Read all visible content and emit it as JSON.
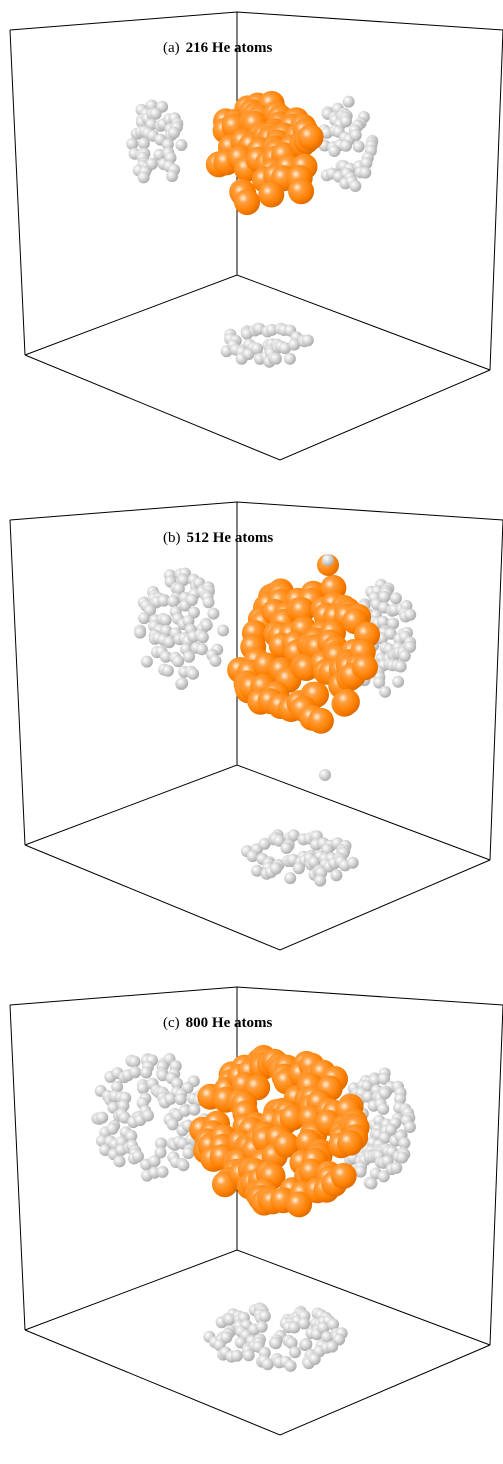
{
  "panels": [
    {
      "label": "(a)",
      "caption": "216 He atoms"
    },
    {
      "label": "(b)",
      "caption": "512 He atoms"
    },
    {
      "label": "(c)",
      "caption": "800 He atoms"
    }
  ]
}
